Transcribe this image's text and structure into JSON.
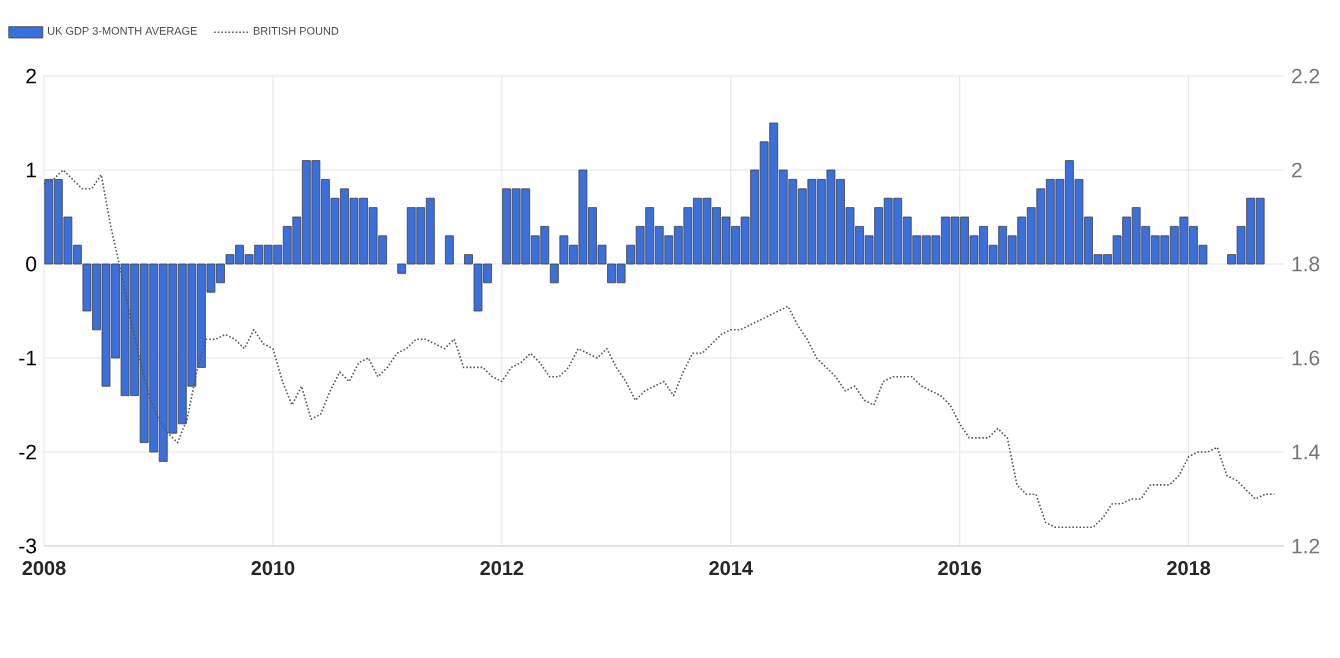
{
  "chart_data": {
    "type": "bar",
    "series": [
      {
        "name": "UK GDP 3-MONTH AVERAGE",
        "axis": "y",
        "color": "#3a6fdc",
        "x": [
          "2008-01",
          "2008-02",
          "2008-03",
          "2008-04",
          "2008-05",
          "2008-06",
          "2008-07",
          "2008-08",
          "2008-09",
          "2008-10",
          "2008-11",
          "2008-12",
          "2009-01",
          "2009-02",
          "2009-03",
          "2009-04",
          "2009-05",
          "2009-06",
          "2009-07",
          "2009-08",
          "2009-09",
          "2009-10",
          "2009-11",
          "2009-12",
          "2010-01",
          "2010-02",
          "2010-03",
          "2010-04",
          "2010-05",
          "2010-06",
          "2010-07",
          "2010-08",
          "2010-09",
          "2010-10",
          "2010-11",
          "2010-12",
          "2011-01",
          "2011-02",
          "2011-03",
          "2011-04",
          "2011-05",
          "2011-06",
          "2011-07",
          "2011-08",
          "2011-09",
          "2011-10",
          "2011-11",
          "2011-12",
          "2012-01",
          "2012-02",
          "2012-03",
          "2012-04",
          "2012-05",
          "2012-06",
          "2012-07",
          "2012-08",
          "2012-09",
          "2012-10",
          "2012-11",
          "2012-12",
          "2013-01",
          "2013-02",
          "2013-03",
          "2013-04",
          "2013-05",
          "2013-06",
          "2013-07",
          "2013-08",
          "2013-09",
          "2013-10",
          "2013-11",
          "2013-12",
          "2014-01",
          "2014-02",
          "2014-03",
          "2014-04",
          "2014-05",
          "2014-06",
          "2014-07",
          "2014-08",
          "2014-09",
          "2014-10",
          "2014-11",
          "2014-12",
          "2015-01",
          "2015-02",
          "2015-03",
          "2015-04",
          "2015-05",
          "2015-06",
          "2015-07",
          "2015-08",
          "2015-09",
          "2015-10",
          "2015-11",
          "2015-12",
          "2016-01",
          "2016-02",
          "2016-03",
          "2016-04",
          "2016-05",
          "2016-06",
          "2016-07",
          "2016-08",
          "2016-09",
          "2016-10",
          "2016-11",
          "2016-12",
          "2017-01",
          "2017-02",
          "2017-03",
          "2017-04",
          "2017-05",
          "2017-06",
          "2017-07",
          "2017-08",
          "2017-09",
          "2017-10",
          "2017-11",
          "2017-12",
          "2018-01",
          "2018-02",
          "2018-03",
          "2018-04",
          "2018-05",
          "2018-06",
          "2018-07",
          "2018-08"
        ],
        "values": [
          0.9,
          0.9,
          0.5,
          0.2,
          -0.5,
          -0.7,
          -1.3,
          -1.0,
          -1.4,
          -1.4,
          -1.9,
          -2.0,
          -2.1,
          -1.8,
          -1.7,
          -1.3,
          -1.1,
          -0.3,
          -0.2,
          0.1,
          0.2,
          0.1,
          0.2,
          0.2,
          0.2,
          0.4,
          0.5,
          1.1,
          1.1,
          0.9,
          0.7,
          0.8,
          0.7,
          0.7,
          0.6,
          0.3,
          null,
          -0.1,
          0.6,
          0.6,
          0.7,
          null,
          0.3,
          null,
          0.1,
          -0.5,
          -0.2,
          null,
          0.8,
          0.8,
          0.8,
          0.3,
          0.4,
          -0.2,
          0.3,
          0.2,
          1.0,
          0.6,
          0.2,
          -0.2,
          -0.2,
          0.2,
          0.4,
          0.6,
          0.4,
          0.3,
          0.4,
          0.6,
          0.7,
          0.7,
          0.6,
          0.5,
          0.4,
          0.5,
          1.0,
          1.3,
          1.5,
          1.0,
          0.9,
          0.8,
          0.9,
          0.9,
          1.0,
          0.9,
          0.6,
          0.4,
          0.3,
          0.6,
          0.7,
          0.7,
          0.5,
          0.3,
          0.3,
          0.3,
          0.5,
          0.5,
          0.5,
          0.3,
          0.4,
          0.2,
          0.4,
          0.3,
          0.5,
          0.6,
          0.8,
          0.9,
          0.9,
          1.1,
          0.9,
          0.5,
          0.1,
          0.1,
          0.3,
          0.5,
          0.6,
          0.4,
          0.3,
          0.3,
          0.4,
          0.5,
          0.4,
          0.2,
          null,
          null,
          0.1,
          0.4,
          0.7,
          0.7
        ]
      },
      {
        "name": "BRITISH POUND",
        "type": "line",
        "axis": "y2",
        "color": "#555555",
        "line_style": "dotted",
        "x": [
          "2008-01",
          "2008-02",
          "2008-03",
          "2008-04",
          "2008-05",
          "2008-06",
          "2008-07",
          "2008-08",
          "2008-09",
          "2008-10",
          "2008-11",
          "2008-12",
          "2009-01",
          "2009-02",
          "2009-03",
          "2009-04",
          "2009-05",
          "2009-06",
          "2009-07",
          "2009-08",
          "2009-09",
          "2009-10",
          "2009-11",
          "2009-12",
          "2010-01",
          "2010-02",
          "2010-03",
          "2010-04",
          "2010-05",
          "2010-06",
          "2010-07",
          "2010-08",
          "2010-09",
          "2010-10",
          "2010-11",
          "2010-12",
          "2011-01",
          "2011-02",
          "2011-03",
          "2011-04",
          "2011-05",
          "2011-06",
          "2011-07",
          "2011-08",
          "2011-09",
          "2011-10",
          "2011-11",
          "2011-12",
          "2012-01",
          "2012-02",
          "2012-03",
          "2012-04",
          "2012-05",
          "2012-06",
          "2012-07",
          "2012-08",
          "2012-09",
          "2012-10",
          "2012-11",
          "2012-12",
          "2013-01",
          "2013-02",
          "2013-03",
          "2013-04",
          "2013-05",
          "2013-06",
          "2013-07",
          "2013-08",
          "2013-09",
          "2013-10",
          "2013-11",
          "2013-12",
          "2014-01",
          "2014-02",
          "2014-03",
          "2014-04",
          "2014-05",
          "2014-06",
          "2014-07",
          "2014-08",
          "2014-09",
          "2014-10",
          "2014-11",
          "2014-12",
          "2015-01",
          "2015-02",
          "2015-03",
          "2015-04",
          "2015-05",
          "2015-06",
          "2015-07",
          "2015-08",
          "2015-09",
          "2015-10",
          "2015-11",
          "2015-12",
          "2016-01",
          "2016-02",
          "2016-03",
          "2016-04",
          "2016-05",
          "2016-06",
          "2016-07",
          "2016-08",
          "2016-09",
          "2016-10",
          "2016-11",
          "2016-12",
          "2017-01",
          "2017-02",
          "2017-03",
          "2017-04",
          "2017-05",
          "2017-06",
          "2017-07",
          "2017-08",
          "2017-09",
          "2017-10",
          "2017-11",
          "2017-12",
          "2018-01",
          "2018-02",
          "2018-03",
          "2018-04",
          "2018-05",
          "2018-06",
          "2018-07",
          "2018-08",
          "2018-09",
          "2018-10"
        ],
        "values": [
          1.97,
          1.98,
          2.0,
          1.98,
          1.96,
          1.96,
          1.99,
          1.88,
          1.79,
          1.69,
          1.6,
          1.52,
          1.47,
          1.44,
          1.42,
          1.47,
          1.57,
          1.64,
          1.64,
          1.65,
          1.64,
          1.62,
          1.66,
          1.63,
          1.62,
          1.55,
          1.5,
          1.54,
          1.47,
          1.48,
          1.53,
          1.57,
          1.55,
          1.59,
          1.6,
          1.56,
          1.58,
          1.61,
          1.62,
          1.64,
          1.64,
          1.63,
          1.62,
          1.64,
          1.58,
          1.58,
          1.58,
          1.56,
          1.55,
          1.58,
          1.59,
          1.61,
          1.59,
          1.56,
          1.56,
          1.58,
          1.62,
          1.61,
          1.6,
          1.62,
          1.58,
          1.55,
          1.51,
          1.53,
          1.54,
          1.55,
          1.52,
          1.57,
          1.61,
          1.61,
          1.63,
          1.65,
          1.66,
          1.66,
          1.67,
          1.68,
          1.69,
          1.7,
          1.71,
          1.67,
          1.64,
          1.6,
          1.58,
          1.56,
          1.53,
          1.54,
          1.51,
          1.5,
          1.55,
          1.56,
          1.56,
          1.56,
          1.54,
          1.53,
          1.52,
          1.5,
          1.46,
          1.43,
          1.43,
          1.43,
          1.45,
          1.43,
          1.33,
          1.31,
          1.31,
          1.25,
          1.24,
          1.24,
          1.24,
          1.24,
          1.24,
          1.26,
          1.29,
          1.29,
          1.3,
          1.3,
          1.33,
          1.33,
          1.33,
          1.35,
          1.39,
          1.4,
          1.4,
          1.41,
          1.35,
          1.34,
          1.32,
          1.3,
          1.31,
          1.31
        ]
      }
    ],
    "xlim": [
      "2008-01",
      "2018-11"
    ],
    "xticks": [
      "2008",
      "2010",
      "2012",
      "2014",
      "2016",
      "2018"
    ],
    "ylim": [
      -3,
      2
    ],
    "yticks": [
      -3,
      -2,
      -1,
      0,
      1,
      2
    ],
    "y2lim": [
      1.2,
      2.2
    ],
    "y2ticks": [
      1.2,
      1.4,
      1.6,
      1.8,
      2,
      2.2
    ],
    "grid": true,
    "legend": "top left"
  }
}
